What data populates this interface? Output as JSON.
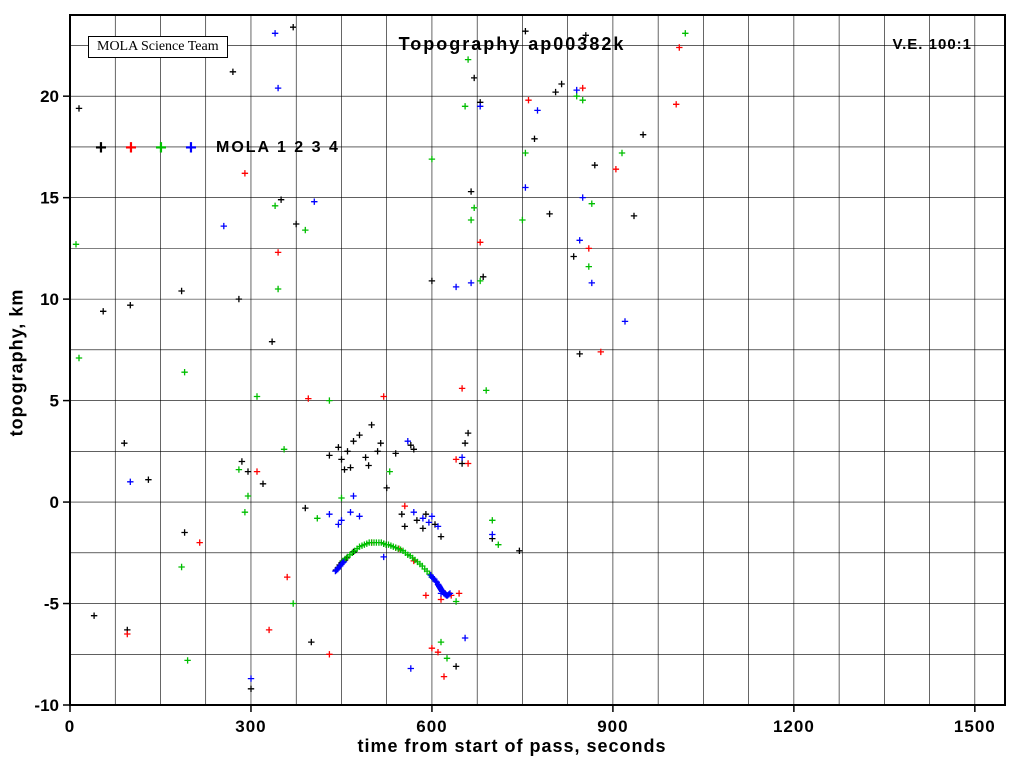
{
  "header": {
    "credit": "MOLA Science Team",
    "title": "Topography ap00382k",
    "ve": "V.E. 100:1"
  },
  "chart_data": {
    "type": "scatter",
    "title": "Topography ap00382k",
    "xlabel": "time from start of pass, seconds",
    "ylabel": "topography, km",
    "xlim": [
      0,
      1550
    ],
    "ylim": [
      -10,
      24
    ],
    "xticks": [
      0,
      300,
      600,
      900,
      1200,
      1500
    ],
    "yticks": [
      -10,
      -5,
      0,
      5,
      10,
      15,
      20
    ],
    "xgrid_step": 75,
    "ygrid_step": 2.5,
    "grid": true,
    "legend": {
      "label": "MOLA 1 2 3 4",
      "marker": "plus",
      "colors": [
        "#000000",
        "#ff0000",
        "#00be00",
        "#0000ff"
      ],
      "position": "upper-left-inside"
    },
    "series": [
      {
        "name": "MOLA 1",
        "color": "#000000",
        "marker": "plus",
        "points": [
          [
            15,
            19.4
          ],
          [
            40,
            -5.6
          ],
          [
            55,
            9.4
          ],
          [
            90,
            2.9
          ],
          [
            95,
            -6.3
          ],
          [
            100,
            9.7
          ],
          [
            130,
            1.1
          ],
          [
            185,
            10.4
          ],
          [
            190,
            -1.5
          ],
          [
            270,
            21.2
          ],
          [
            280,
            10.0
          ],
          [
            285,
            2.0
          ],
          [
            295,
            1.5
          ],
          [
            300,
            -9.2
          ],
          [
            320,
            0.9
          ],
          [
            335,
            7.9
          ],
          [
            350,
            14.9
          ],
          [
            370,
            23.4
          ],
          [
            375,
            13.7
          ],
          [
            390,
            -0.3
          ],
          [
            400,
            -6.9
          ],
          [
            430,
            2.3
          ],
          [
            445,
            2.7
          ],
          [
            450,
            2.1
          ],
          [
            455,
            1.6
          ],
          [
            460,
            2.5
          ],
          [
            465,
            1.7
          ],
          [
            470,
            3.0
          ],
          [
            480,
            3.3
          ],
          [
            490,
            2.2
          ],
          [
            495,
            1.8
          ],
          [
            500,
            3.8
          ],
          [
            510,
            2.5
          ],
          [
            515,
            2.9
          ],
          [
            525,
            0.7
          ],
          [
            540,
            2.4
          ],
          [
            550,
            -0.6
          ],
          [
            555,
            -1.2
          ],
          [
            565,
            2.8
          ],
          [
            570,
            2.6
          ],
          [
            575,
            -0.9
          ],
          [
            585,
            -1.3
          ],
          [
            590,
            -0.6
          ],
          [
            600,
            10.9
          ],
          [
            605,
            -1.1
          ],
          [
            615,
            -1.7
          ],
          [
            625,
            -4.6
          ],
          [
            640,
            -8.1
          ],
          [
            650,
            1.9
          ],
          [
            655,
            2.9
          ],
          [
            660,
            3.4
          ],
          [
            665,
            15.3
          ],
          [
            670,
            20.9
          ],
          [
            680,
            19.7
          ],
          [
            685,
            11.1
          ],
          [
            700,
            -1.8
          ],
          [
            745,
            -2.4
          ],
          [
            755,
            23.2
          ],
          [
            770,
            17.9
          ],
          [
            795,
            14.2
          ],
          [
            805,
            20.2
          ],
          [
            815,
            20.6
          ],
          [
            835,
            12.1
          ],
          [
            845,
            7.3
          ],
          [
            855,
            23.0
          ],
          [
            870,
            16.6
          ],
          [
            935,
            14.1
          ],
          [
            950,
            18.1
          ],
          [
            441,
            -3.35
          ],
          [
            444,
            -3.25
          ],
          [
            447,
            -3.1
          ],
          [
            450,
            -3.0
          ],
          [
            453,
            -2.95
          ],
          [
            456,
            -2.85
          ],
          [
            459,
            -2.75
          ],
          [
            470,
            -2.45
          ],
          [
            520,
            -2.05
          ]
        ]
      },
      {
        "name": "MOLA 2",
        "color": "#ff0000",
        "marker": "plus",
        "points": [
          [
            95,
            -6.5
          ],
          [
            215,
            -2.0
          ],
          [
            290,
            16.2
          ],
          [
            310,
            1.5
          ],
          [
            330,
            -6.3
          ],
          [
            345,
            12.3
          ],
          [
            360,
            -3.7
          ],
          [
            395,
            5.1
          ],
          [
            430,
            -7.5
          ],
          [
            500,
            -2.0
          ],
          [
            520,
            5.2
          ],
          [
            540,
            -2.25
          ],
          [
            545,
            -2.3
          ],
          [
            555,
            -0.2
          ],
          [
            570,
            -2.9
          ],
          [
            590,
            -4.6
          ],
          [
            600,
            -7.2
          ],
          [
            610,
            -7.4
          ],
          [
            615,
            -4.8
          ],
          [
            620,
            -8.6
          ],
          [
            622,
            -4.5
          ],
          [
            632,
            -4.6
          ],
          [
            640,
            2.1
          ],
          [
            645,
            -4.5
          ],
          [
            650,
            5.6
          ],
          [
            660,
            1.9
          ],
          [
            680,
            12.8
          ],
          [
            760,
            19.8
          ],
          [
            850,
            20.4
          ],
          [
            860,
            12.5
          ],
          [
            880,
            7.4
          ],
          [
            905,
            16.4
          ],
          [
            1005,
            19.6
          ],
          [
            1010,
            22.4
          ]
        ]
      },
      {
        "name": "MOLA 3",
        "color": "#00be00",
        "marker": "plus",
        "points": [
          [
            10,
            12.7
          ],
          [
            15,
            7.1
          ],
          [
            185,
            -3.2
          ],
          [
            190,
            6.4
          ],
          [
            195,
            -7.8
          ],
          [
            280,
            1.6
          ],
          [
            290,
            -0.5
          ],
          [
            295,
            0.3
          ],
          [
            310,
            5.2
          ],
          [
            340,
            14.6
          ],
          [
            345,
            10.5
          ],
          [
            355,
            2.6
          ],
          [
            370,
            -5.0
          ],
          [
            390,
            13.4
          ],
          [
            410,
            -0.8
          ],
          [
            430,
            5.0
          ],
          [
            450,
            0.2
          ],
          [
            530,
            1.5
          ],
          [
            600,
            16.9
          ],
          [
            615,
            -6.9
          ],
          [
            625,
            -7.7
          ],
          [
            640,
            -4.9
          ],
          [
            655,
            19.5
          ],
          [
            660,
            21.8
          ],
          [
            665,
            13.9
          ],
          [
            670,
            14.5
          ],
          [
            680,
            10.9
          ],
          [
            690,
            5.5
          ],
          [
            700,
            -0.9
          ],
          [
            710,
            -2.1
          ],
          [
            750,
            13.9
          ],
          [
            755,
            17.2
          ],
          [
            840,
            20.0
          ],
          [
            850,
            19.8
          ],
          [
            860,
            11.6
          ],
          [
            865,
            14.7
          ],
          [
            915,
            17.2
          ],
          [
            1020,
            23.1
          ],
          [
            452,
            -2.9
          ],
          [
            456,
            -2.8
          ],
          [
            460,
            -2.7
          ],
          [
            464,
            -2.6
          ],
          [
            468,
            -2.5
          ],
          [
            472,
            -2.4
          ],
          [
            476,
            -2.3
          ],
          [
            480,
            -2.2
          ],
          [
            484,
            -2.15
          ],
          [
            488,
            -2.1
          ],
          [
            492,
            -2.05
          ],
          [
            496,
            -2.0
          ],
          [
            500,
            -2.0
          ],
          [
            504,
            -2.0
          ],
          [
            508,
            -2.0
          ],
          [
            512,
            -2.0
          ],
          [
            516,
            -2.0
          ],
          [
            520,
            -2.05
          ],
          [
            524,
            -2.1
          ],
          [
            528,
            -2.1
          ],
          [
            532,
            -2.15
          ],
          [
            536,
            -2.2
          ],
          [
            540,
            -2.25
          ],
          [
            544,
            -2.3
          ],
          [
            548,
            -2.35
          ],
          [
            552,
            -2.4
          ],
          [
            556,
            -2.5
          ],
          [
            560,
            -2.6
          ],
          [
            564,
            -2.65
          ],
          [
            568,
            -2.75
          ],
          [
            572,
            -2.85
          ],
          [
            576,
            -2.95
          ],
          [
            580,
            -3.05
          ],
          [
            584,
            -3.15
          ],
          [
            588,
            -3.3
          ],
          [
            592,
            -3.4
          ],
          [
            596,
            -3.55
          ],
          [
            600,
            -3.7
          ]
        ]
      },
      {
        "name": "MOLA 4",
        "color": "#0000ff",
        "marker": "plus",
        "points": [
          [
            100,
            1.0
          ],
          [
            255,
            13.6
          ],
          [
            300,
            -8.7
          ],
          [
            340,
            23.1
          ],
          [
            345,
            20.4
          ],
          [
            405,
            14.8
          ],
          [
            430,
            -0.6
          ],
          [
            445,
            -1.1
          ],
          [
            450,
            -0.9
          ],
          [
            465,
            -0.5
          ],
          [
            470,
            0.3
          ],
          [
            480,
            -0.7
          ],
          [
            520,
            -2.7
          ],
          [
            560,
            3.0
          ],
          [
            565,
            -8.2
          ],
          [
            570,
            -0.5
          ],
          [
            585,
            -0.8
          ],
          [
            595,
            -1.0
          ],
          [
            600,
            -0.7
          ],
          [
            610,
            -1.2
          ],
          [
            615,
            -4.5
          ],
          [
            640,
            10.6
          ],
          [
            650,
            2.2
          ],
          [
            655,
            -6.7
          ],
          [
            665,
            10.8
          ],
          [
            680,
            19.5
          ],
          [
            700,
            -1.6
          ],
          [
            755,
            15.5
          ],
          [
            775,
            19.3
          ],
          [
            840,
            20.3
          ],
          [
            845,
            12.9
          ],
          [
            850,
            15.0
          ],
          [
            865,
            10.8
          ],
          [
            920,
            8.9
          ],
          [
            440,
            -3.4
          ],
          [
            442,
            -3.35
          ],
          [
            444,
            -3.3
          ],
          [
            446,
            -3.2
          ],
          [
            448,
            -3.15
          ],
          [
            450,
            -3.05
          ],
          [
            452,
            -3.0
          ],
          [
            454,
            -2.95
          ],
          [
            598,
            -3.6
          ],
          [
            600,
            -3.7
          ],
          [
            602,
            -3.75
          ],
          [
            604,
            -3.8
          ],
          [
            606,
            -3.9
          ],
          [
            608,
            -3.95
          ],
          [
            610,
            -4.05
          ],
          [
            611,
            -4.1
          ],
          [
            612,
            -4.15
          ],
          [
            613,
            -4.2
          ],
          [
            614,
            -4.25
          ],
          [
            615,
            -4.3
          ],
          [
            616,
            -4.35
          ],
          [
            617,
            -4.4
          ],
          [
            618,
            -4.4
          ],
          [
            619,
            -4.45
          ],
          [
            620,
            -4.5
          ],
          [
            621,
            -4.5
          ],
          [
            622,
            -4.55
          ],
          [
            623,
            -4.55
          ],
          [
            624,
            -4.6
          ],
          [
            626,
            -4.6
          ],
          [
            628,
            -4.55
          ],
          [
            630,
            -4.5
          ]
        ]
      }
    ]
  }
}
